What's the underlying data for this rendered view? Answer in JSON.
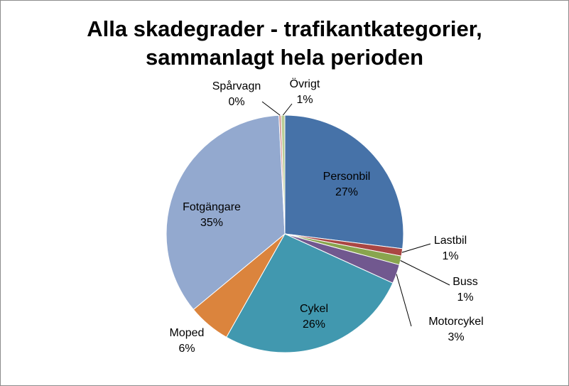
{
  "chart_data": {
    "type": "pie",
    "title_lines": [
      "Alla skadegrader - trafikantkategorier,",
      "sammanlagt hela perioden"
    ],
    "slices": [
      {
        "label": "Personbil",
        "percent_label": "27%",
        "value": 27.0,
        "color": "#4672A8"
      },
      {
        "label": "Lastbil",
        "percent_label": "1%",
        "value": 1.0,
        "color": "#AA4643"
      },
      {
        "label": "Buss",
        "percent_label": "1%",
        "value": 1.2,
        "color": "#89A54E"
      },
      {
        "label": "Motorcykel",
        "percent_label": "3%",
        "value": 2.6,
        "color": "#71588F"
      },
      {
        "label": "Cykel",
        "percent_label": "26%",
        "value": 26.4,
        "color": "#4198AF"
      },
      {
        "label": "Moped",
        "percent_label": "6%",
        "value": 5.8,
        "color": "#DB843D"
      },
      {
        "label": "Fotgängare",
        "percent_label": "35%",
        "value": 35.2,
        "color": "#93A9CF"
      },
      {
        "label": "Spårvagn",
        "percent_label": "0%",
        "value": 0.3,
        "color": "#D19392"
      },
      {
        "label": "Övrigt",
        "percent_label": "1%",
        "value": 0.5,
        "color": "#B9CD96"
      }
    ]
  }
}
